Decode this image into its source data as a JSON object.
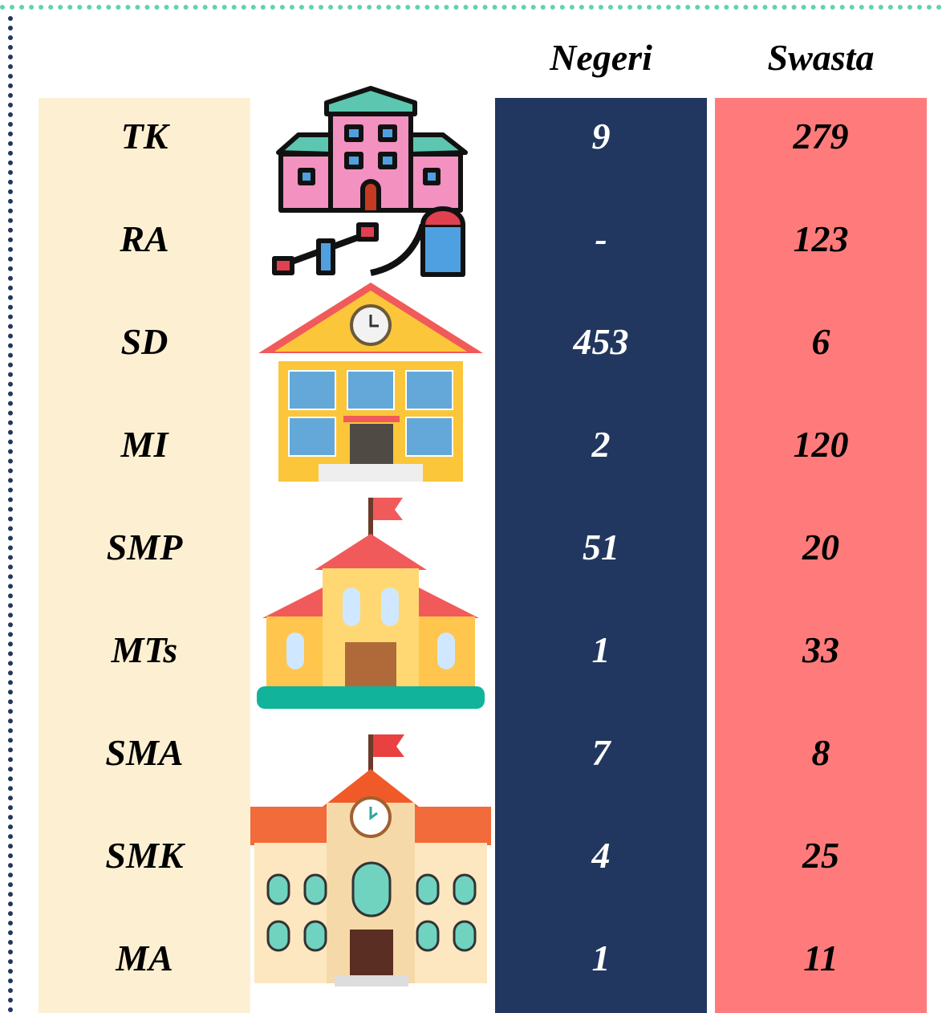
{
  "table": {
    "columns": [
      "Negeri",
      "Swasta"
    ],
    "rows": [
      [
        "TK",
        9,
        279
      ],
      [
        "RA",
        "-",
        123
      ],
      [
        "SD",
        453,
        6
      ],
      [
        "MI",
        2,
        120
      ],
      [
        "SMP",
        51,
        20
      ],
      [
        "MTs",
        1,
        33
      ],
      [
        "SMA",
        7,
        8
      ],
      [
        "SMK",
        4,
        25
      ],
      [
        "MA",
        1,
        11
      ]
    ]
  }
}
